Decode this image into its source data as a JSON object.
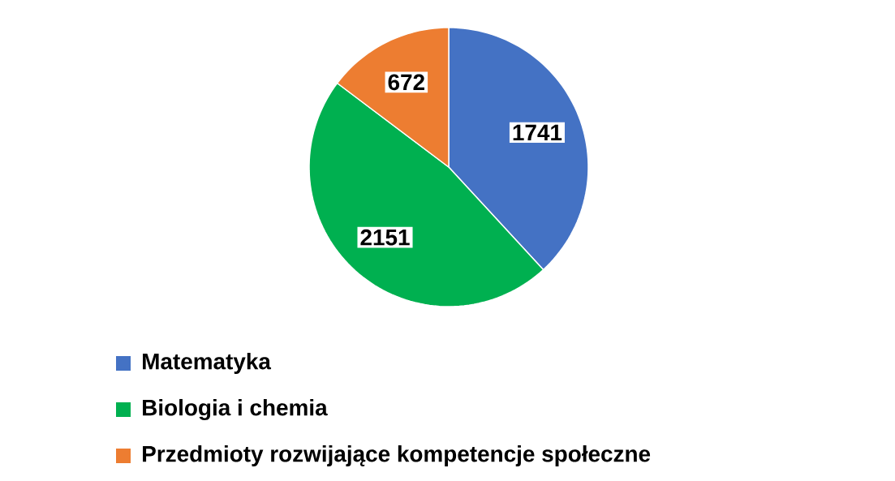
{
  "chart_data": {
    "type": "pie",
    "categories": [
      "Matematyka",
      "Biologia i chemia",
      "Przedmioty rozwijające kompetencje społeczne"
    ],
    "values": [
      1741,
      2151,
      672
    ],
    "colors": [
      "#4472c4",
      "#00b050",
      "#ed7d31"
    ],
    "data_labels": true,
    "legend": "bottom"
  }
}
